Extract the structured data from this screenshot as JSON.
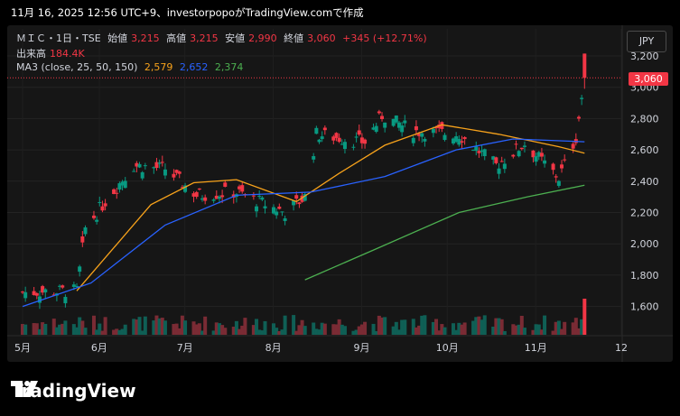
{
  "header": {
    "text": "11月 16, 2025 12:56 UTC+9、investorpopoがTradingView.comで作成"
  },
  "legend": {
    "symbol": "ＭＩＣ・1日・TSE",
    "open_label": "始値",
    "open": "3,215",
    "high_label": "高値",
    "high": "3,215",
    "low_label": "安値",
    "low": "2,990",
    "close_label": "終値",
    "close": "3,060",
    "change": "+345 (+12.71%)",
    "volume_label": "出来高",
    "volume": "184.4K",
    "ma_label": "MA3 (close, 25, 50, 150)",
    "ma25": "2,579",
    "ma50": "2,652",
    "ma150": "2,374"
  },
  "currency": "JPY",
  "last_price_tag": "3,060",
  "logo_text": "TradingView",
  "colors": {
    "up": "#089981",
    "down": "#f23645",
    "ma25": "#f7a21b",
    "ma50": "#2962ff",
    "ma150": "#4caf50",
    "volume_up": "#0f5f55",
    "volume_down": "#7a2b34"
  },
  "chart_data": {
    "type": "candlestick",
    "y_ticks": [
      "3,200",
      "3,000",
      "2,800",
      "2,600",
      "2,400",
      "2,200",
      "2,000",
      "1,800",
      "1,600"
    ],
    "x_ticks": [
      "5月",
      "6月",
      "7月",
      "8月",
      "9月",
      "10月",
      "11月",
      "12"
    ],
    "ylim": [
      1450,
      3300
    ],
    "x_range": [
      "2025-05-01",
      "2025-12-01"
    ],
    "series_summary": [
      {
        "date": "2025-05-01",
        "close": 1690
      },
      {
        "date": "2025-05-20",
        "close": 1700
      },
      {
        "date": "2025-05-23",
        "close": 2100
      },
      {
        "date": "2025-06-01",
        "close": 2320
      },
      {
        "date": "2025-06-09",
        "close": 2500
      },
      {
        "date": "2025-06-20",
        "close": 2480
      },
      {
        "date": "2025-07-01",
        "close": 2310
      },
      {
        "date": "2025-07-15",
        "close": 2330
      },
      {
        "date": "2025-08-01",
        "close": 2200
      },
      {
        "date": "2025-08-08",
        "close": 2300
      },
      {
        "date": "2025-08-12",
        "close": 2700
      },
      {
        "date": "2025-08-29",
        "close": 2650
      },
      {
        "date": "2025-09-04",
        "close": 2820
      },
      {
        "date": "2025-09-15",
        "close": 2720
      },
      {
        "date": "2025-10-01",
        "close": 2700
      },
      {
        "date": "2025-10-14",
        "close": 2500
      },
      {
        "date": "2025-10-24",
        "close": 2640
      },
      {
        "date": "2025-11-05",
        "close": 2420
      },
      {
        "date": "2025-11-11",
        "close": 2680
      },
      {
        "date": "2025-11-14",
        "close": 3060
      }
    ],
    "last_candle": {
      "open": 3215,
      "high": 3215,
      "low": 2990,
      "close": 3060
    },
    "ma25": [
      [
        "2025-05-20",
        1700
      ],
      [
        "2025-06-15",
        2250
      ],
      [
        "2025-06-30",
        2390
      ],
      [
        "2025-07-15",
        2410
      ],
      [
        "2025-08-05",
        2270
      ],
      [
        "2025-08-20",
        2450
      ],
      [
        "2025-09-05",
        2630
      ],
      [
        "2025-09-25",
        2760
      ],
      [
        "2025-10-15",
        2700
      ],
      [
        "2025-11-05",
        2620
      ],
      [
        "2025-11-14",
        2579
      ]
    ],
    "ma50": [
      [
        "2025-05-01",
        1600
      ],
      [
        "2025-05-25",
        1750
      ],
      [
        "2025-06-20",
        2120
      ],
      [
        "2025-07-15",
        2310
      ],
      [
        "2025-08-10",
        2330
      ],
      [
        "2025-09-05",
        2430
      ],
      [
        "2025-09-30",
        2600
      ],
      [
        "2025-10-20",
        2670
      ],
      [
        "2025-11-14",
        2652
      ]
    ],
    "ma150": [
      [
        "2025-08-08",
        1770
      ],
      [
        "2025-09-01",
        1960
      ],
      [
        "2025-10-01",
        2200
      ],
      [
        "2025-10-25",
        2300
      ],
      [
        "2025-11-14",
        2374
      ]
    ]
  }
}
